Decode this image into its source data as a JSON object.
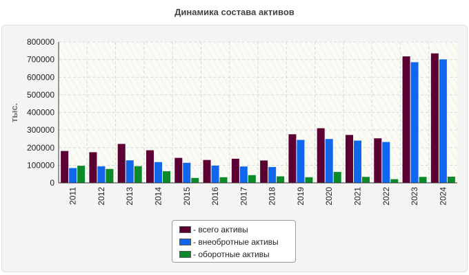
{
  "chart_data": {
    "type": "bar",
    "title": "Динамика состава активов",
    "xlabel": "",
    "ylabel": "тыс.",
    "ylim": [
      0,
      800000
    ],
    "yticks": [
      0,
      100000,
      200000,
      300000,
      400000,
      500000,
      600000,
      700000,
      800000
    ],
    "categories": [
      "2011",
      "2012",
      "2013",
      "2014",
      "2015",
      "2016",
      "2017",
      "2018",
      "2019",
      "2020",
      "2021",
      "2022",
      "2023",
      "2024"
    ],
    "series": [
      {
        "name": "- всего активы",
        "color": "#5c0033",
        "values": [
          181000,
          174000,
          221000,
          185000,
          142000,
          130000,
          137000,
          127000,
          276000,
          310000,
          272000,
          253000,
          718000,
          735000
        ]
      },
      {
        "name": "- внеобротные активы",
        "color": "#1166ee",
        "values": [
          84000,
          94000,
          128000,
          118000,
          114000,
          98000,
          93000,
          90000,
          244000,
          249000,
          240000,
          232000,
          685000,
          701000
        ]
      },
      {
        "name": "- оборотные активы",
        "color": "#0b8a2a",
        "values": [
          97000,
          79000,
          95000,
          66000,
          28000,
          32000,
          44000,
          37000,
          32000,
          62000,
          34000,
          21000,
          34000,
          35000
        ]
      }
    ],
    "grid": true,
    "legend": "bottom-center"
  }
}
